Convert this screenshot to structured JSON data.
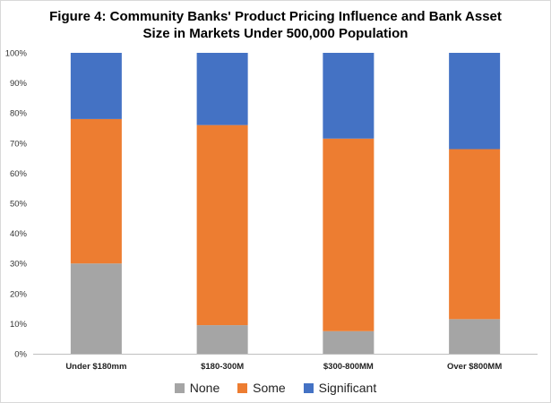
{
  "chart_data": {
    "type": "bar",
    "stacked": true,
    "title_lines": [
      "Figure 4: Community Banks' Product Pricing Influence and Bank Asset",
      "Size in Markets Under 500,000 Population"
    ],
    "categories": [
      "Under $180mm",
      "$180-300M",
      "$300-800MM",
      "Over $800MM"
    ],
    "series": [
      {
        "name": "None",
        "color": "#a5a5a5",
        "values": [
          30,
          9.5,
          7.5,
          11.5
        ]
      },
      {
        "name": "Some",
        "color": "#ed7d31",
        "values": [
          48,
          66.5,
          64,
          56.5
        ]
      },
      {
        "name": "Significant",
        "color": "#4472c4",
        "values": [
          22,
          24,
          28.5,
          32
        ]
      }
    ],
    "ylim": [
      0,
      100
    ],
    "yticks": [
      "0%",
      "10%",
      "20%",
      "30%",
      "40%",
      "50%",
      "60%",
      "70%",
      "80%",
      "90%",
      "100%"
    ],
    "grid": false,
    "legend_position": "bottom"
  }
}
